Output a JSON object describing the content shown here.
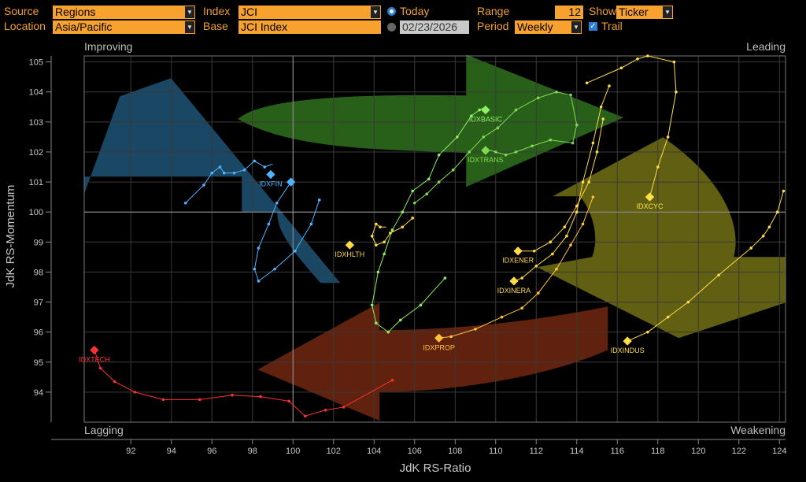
{
  "toolbar": {
    "source_label": "Source",
    "source_value": "Regions",
    "location_label": "Location",
    "location_value": "Asia/Pacific",
    "index_label": "Index",
    "index_value": "JCI",
    "base_label": "Base",
    "base_value": "JCI Index",
    "today_label": "Today",
    "date_value": "02/23/2026",
    "range_label": "Range",
    "range_value": "12",
    "period_label": "Period",
    "period_value": "Weekly",
    "show_label": "Show",
    "show_value": "Ticker",
    "trail_label": "Trail"
  },
  "chart_data": {
    "type": "scatter",
    "xlabel": "JdK RS-Ratio",
    "ylabel": "JdK RS-Momentum",
    "xlim": [
      89.7,
      124.3
    ],
    "ylim": [
      93.0,
      105.2
    ],
    "xticks": [
      "92",
      "94",
      "96",
      "98",
      "100",
      "102",
      "104",
      "106",
      "108",
      "110",
      "112",
      "114",
      "116",
      "118",
      "120",
      "122",
      "124"
    ],
    "yticks": [
      "94",
      "95",
      "96",
      "97",
      "98",
      "99",
      "100",
      "101",
      "102",
      "103",
      "104",
      "105"
    ],
    "xtick_values": [
      92,
      94,
      96,
      98,
      100,
      102,
      104,
      106,
      108,
      110,
      112,
      114,
      116,
      118,
      120,
      122,
      124
    ],
    "ytick_values": [
      94,
      95,
      96,
      97,
      98,
      99,
      100,
      101,
      102,
      103,
      104,
      105
    ],
    "center": [
      100,
      100
    ],
    "grid": true,
    "quadrants": {
      "top_left": "Improving",
      "top_right": "Leading",
      "bottom_left": "Lagging",
      "bottom_right": "Weakening"
    },
    "quadrant_colors": {
      "improving": "#1d4f6e",
      "leading": "#2e6a1c",
      "weakening": "#6b6a14",
      "lagging": "#6a2610"
    },
    "series": [
      {
        "name": "IDXFIN",
        "color": "#4fb3ff",
        "trail": [
          [
            94.7,
            100.3
          ],
          [
            95.6,
            100.9
          ],
          [
            96.0,
            101.3
          ],
          [
            96.4,
            101.5
          ],
          [
            96.6,
            101.3
          ],
          [
            97.1,
            101.3
          ],
          [
            97.6,
            101.4
          ],
          [
            98.1,
            101.7
          ],
          [
            98.6,
            101.5
          ],
          [
            99.0,
            101.6
          ]
        ],
        "point": [
          98.9,
          101.25
        ]
      },
      {
        "name": "",
        "color": "#4fb3ff",
        "trail": [
          [
            101.3,
            100.4
          ],
          [
            100.9,
            99.6
          ],
          [
            100.1,
            98.7
          ],
          [
            99.1,
            98.1
          ],
          [
            98.3,
            97.7
          ],
          [
            98.1,
            98.1
          ],
          [
            98.3,
            98.8
          ],
          [
            98.8,
            99.6
          ],
          [
            99.2,
            100.3
          ],
          [
            99.9,
            101.0
          ]
        ],
        "point": [
          99.9,
          101.0
        ]
      },
      {
        "name": "IDXTECH",
        "color": "#ff3030",
        "trail": [
          [
            104.9,
            94.4
          ],
          [
            102.5,
            93.5
          ],
          [
            101.6,
            93.4
          ],
          [
            100.6,
            93.2
          ],
          [
            99.8,
            93.7
          ],
          [
            98.4,
            93.85
          ],
          [
            97.0,
            93.9
          ],
          [
            95.4,
            93.75
          ],
          [
            93.6,
            93.75
          ],
          [
            92.2,
            94.0
          ],
          [
            91.2,
            94.35
          ],
          [
            90.5,
            94.8
          ],
          [
            90.2,
            95.4
          ]
        ],
        "point": [
          90.2,
          95.4
        ]
      },
      {
        "name": "IDXBASIC",
        "color": "#8cf060",
        "trail": [
          [
            107.5,
            97.8
          ],
          [
            106.3,
            96.9
          ],
          [
            105.3,
            96.4
          ],
          [
            104.7,
            96.0
          ],
          [
            104.1,
            96.3
          ],
          [
            103.9,
            96.9
          ],
          [
            104.2,
            98.0
          ],
          [
            104.5,
            98.6
          ],
          [
            104.9,
            99.4
          ],
          [
            105.4,
            100.0
          ],
          [
            105.9,
            100.7
          ],
          [
            106.7,
            101.1
          ],
          [
            107.2,
            101.9
          ],
          [
            108.1,
            102.5
          ],
          [
            108.8,
            103.2
          ],
          [
            109.2,
            103.4
          ],
          [
            109.5,
            103.5
          ]
        ],
        "point": [
          109.5,
          103.4
        ]
      },
      {
        "name": "IDXTRANS",
        "color": "#7fdc50",
        "trail": [
          [
            106.0,
            100.3
          ],
          [
            106.6,
            100.6
          ],
          [
            107.2,
            101.0
          ],
          [
            107.9,
            101.4
          ],
          [
            108.7,
            102.0
          ],
          [
            109.4,
            102.5
          ],
          [
            110.1,
            102.8
          ],
          [
            111.0,
            103.4
          ],
          [
            112.1,
            103.8
          ],
          [
            113.0,
            104.0
          ],
          [
            113.7,
            103.9
          ],
          [
            114.0,
            102.9
          ],
          [
            113.8,
            102.3
          ],
          [
            112.7,
            102.4
          ],
          [
            111.8,
            102.2
          ],
          [
            111.0,
            102.0
          ],
          [
            110.5,
            101.9
          ],
          [
            110.0,
            102.0
          ],
          [
            109.5,
            102.1
          ]
        ],
        "point": [
          109.5,
          102.05
        ]
      },
      {
        "name": "IDXHLTH",
        "color": "#ffd94a",
        "trail": [
          [
            105.9,
            99.8
          ],
          [
            105.4,
            99.5
          ],
          [
            104.8,
            99.3
          ],
          [
            104.5,
            99.0
          ],
          [
            104.1,
            98.9
          ],
          [
            103.9,
            99.2
          ],
          [
            104.1,
            99.6
          ],
          [
            104.3,
            99.5
          ],
          [
            104.6,
            99.5
          ]
        ],
        "point": [
          102.8,
          98.9
        ]
      },
      {
        "name": "IDXCYC",
        "color": "#ffe04a",
        "trail": [
          [
            114.5,
            104.3
          ],
          [
            116.2,
            104.8
          ],
          [
            117.0,
            105.1
          ],
          [
            117.5,
            105.2
          ],
          [
            118.8,
            105.0
          ],
          [
            118.9,
            104.0
          ],
          [
            118.5,
            102.5
          ],
          [
            118.0,
            101.5
          ],
          [
            117.6,
            100.5
          ]
        ],
        "point": [
          117.6,
          100.5
        ]
      },
      {
        "name": "IDXENER",
        "color": "#ffd94a",
        "trail": [
          [
            115.3,
            103.1
          ],
          [
            115.0,
            102.0
          ],
          [
            114.6,
            101.0
          ],
          [
            114.0,
            100.2
          ],
          [
            113.4,
            99.5
          ],
          [
            112.7,
            99.0
          ],
          [
            111.9,
            98.7
          ],
          [
            111.1,
            98.7
          ]
        ],
        "point": [
          111.1,
          98.7
        ]
      },
      {
        "name": "IDXINERA",
        "color": "#ffd94a",
        "trail": [
          [
            115.6,
            104.2
          ],
          [
            115.2,
            103.5
          ],
          [
            114.8,
            102.3
          ],
          [
            114.3,
            101.0
          ],
          [
            114.0,
            100.0
          ],
          [
            113.5,
            99.2
          ],
          [
            112.8,
            98.6
          ],
          [
            112.0,
            98.2
          ],
          [
            111.3,
            97.8
          ],
          [
            110.9,
            97.7
          ]
        ],
        "point": [
          110.9,
          97.7
        ]
      },
      {
        "name": "IDXPROP",
        "color": "#ffc13a",
        "trail": [
          [
            114.8,
            100.5
          ],
          [
            114.3,
            99.6
          ],
          [
            113.7,
            98.9
          ],
          [
            113.0,
            98.1
          ],
          [
            112.1,
            97.3
          ],
          [
            111.3,
            96.8
          ],
          [
            110.3,
            96.5
          ],
          [
            109.0,
            96.1
          ],
          [
            107.8,
            95.85
          ],
          [
            107.2,
            95.8
          ]
        ],
        "point": [
          107.2,
          95.8
        ]
      },
      {
        "name": "IDXINDUS",
        "color": "#ffdc4a",
        "trail": [
          [
            124.2,
            100.7
          ],
          [
            123.9,
            100.0
          ],
          [
            123.5,
            99.5
          ],
          [
            123.2,
            99.2
          ],
          [
            122.6,
            98.8
          ],
          [
            121.0,
            97.9
          ],
          [
            119.5,
            97.0
          ],
          [
            118.5,
            96.5
          ],
          [
            117.5,
            96.0
          ],
          [
            116.5,
            95.7
          ]
        ],
        "point": [
          116.5,
          95.7
        ]
      }
    ]
  }
}
